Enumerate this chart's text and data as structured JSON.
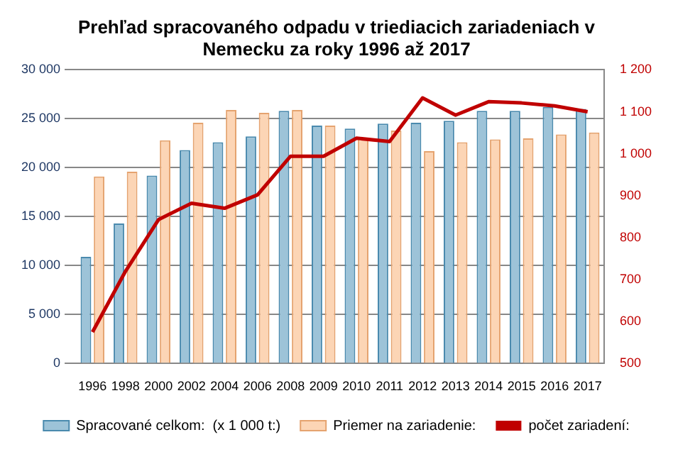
{
  "chart_data": {
    "type": "bar",
    "title": [
      "Prehľad spracovaného odpadu v triediacich zariadeniach v",
      "Nemecku za roky 1996 až 2017"
    ],
    "categories": [
      "1996",
      "1998",
      "2000",
      "2002",
      "2004",
      "2006",
      "2008",
      "2009",
      "2010",
      "2011",
      "2012",
      "2013",
      "2014",
      "2015",
      "2016",
      "2017"
    ],
    "series": [
      {
        "name": "Spracované celkom:  (x 1 000 t:)",
        "color": "#9dc3d8",
        "values": [
          10900,
          14300,
          19200,
          21800,
          22600,
          23200,
          25800,
          24300,
          24000,
          24500,
          24600,
          24800,
          25800,
          25800,
          26200,
          26000
        ]
      },
      {
        "name": "Priemer na zariadenie:",
        "color": "#fcd5b5",
        "values": [
          19100,
          19600,
          22800,
          24600,
          25900,
          25600,
          25900,
          24300,
          23000,
          23800,
          21700,
          22600,
          22900,
          23000,
          23400,
          23600
        ]
      },
      {
        "name": "počet zariadení:",
        "type": "line",
        "axis": "y2",
        "color": "#c00000",
        "values": [
          575,
          720,
          843,
          882,
          870,
          902,
          994,
          994,
          1037,
          1029,
          1133,
          1092,
          1124,
          1121,
          1114,
          1100
        ]
      }
    ],
    "ylim": [
      0,
      30000
    ],
    "yticks": [
      {
        "value": 0,
        "label": "0"
      },
      {
        "value": 5000,
        "label": "5 000"
      },
      {
        "value": 10000,
        "label": "10 000"
      },
      {
        "value": 15000,
        "label": "15 000"
      },
      {
        "value": 20000,
        "label": "20 000"
      },
      {
        "value": 25000,
        "label": "25 000"
      },
      {
        "value": 30000,
        "label": "30 000"
      }
    ],
    "y2lim": [
      500,
      1200
    ],
    "y2ticks": [
      {
        "value": 500,
        "label": "500"
      },
      {
        "value": 600,
        "label": "600"
      },
      {
        "value": 700,
        "label": "700"
      },
      {
        "value": 800,
        "label": "800"
      },
      {
        "value": 900,
        "label": "900"
      },
      {
        "value": 1000,
        "label": "1 000"
      },
      {
        "value": 1100,
        "label": "1 100"
      },
      {
        "value": 1200,
        "label": "1 200"
      }
    ],
    "grid": "y",
    "legend": "bottom",
    "marker": "none",
    "line_style": "solid"
  }
}
